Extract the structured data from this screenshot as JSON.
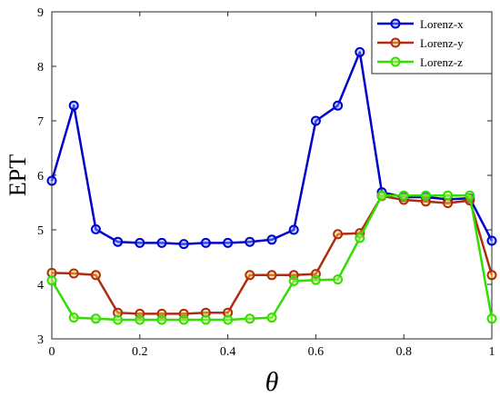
{
  "chart_data": {
    "type": "line",
    "xlabel": "θ",
    "ylabel": "EPT",
    "xlim": [
      0,
      1
    ],
    "ylim": [
      3,
      9
    ],
    "x": [
      0,
      0.05,
      0.1,
      0.15,
      0.2,
      0.25,
      0.3,
      0.35,
      0.4,
      0.45,
      0.5,
      0.55,
      0.6,
      0.65,
      0.7,
      0.75,
      0.8,
      0.85,
      0.9,
      0.95,
      1.0
    ],
    "x_ticks": [
      "0",
      "0.2",
      "0.4",
      "0.6",
      "0.8",
      "1"
    ],
    "y_ticks": [
      "3",
      "4",
      "5",
      "6",
      "7",
      "8",
      "9"
    ],
    "legend_position": "top-right",
    "grid": false,
    "series": [
      {
        "name": "Lorenz-x",
        "color": "#0000cc",
        "marker_fill": "#7fa8ff",
        "values": [
          5.9,
          7.28,
          5.01,
          4.78,
          4.76,
          4.76,
          4.74,
          4.76,
          4.76,
          4.78,
          4.82,
          5.0,
          7.0,
          7.28,
          8.26,
          5.69,
          5.6,
          5.6,
          5.56,
          5.58,
          4.8
        ]
      },
      {
        "name": "Lorenz-y",
        "color": "#b02b12",
        "marker_fill": "#ffd84a",
        "values": [
          4.21,
          4.2,
          4.17,
          3.48,
          3.46,
          3.46,
          3.46,
          3.48,
          3.48,
          4.17,
          4.17,
          4.17,
          4.19,
          4.92,
          4.94,
          5.62,
          5.55,
          5.52,
          5.49,
          5.54,
          4.17
        ]
      },
      {
        "name": "Lorenz-z",
        "color": "#33dd00",
        "marker_fill": "#c9ff7a",
        "values": [
          4.07,
          3.39,
          3.37,
          3.35,
          3.35,
          3.35,
          3.35,
          3.35,
          3.35,
          3.37,
          3.39,
          4.06,
          4.08,
          4.09,
          4.85,
          5.63,
          5.63,
          5.63,
          5.63,
          5.63,
          3.37
        ]
      }
    ]
  }
}
